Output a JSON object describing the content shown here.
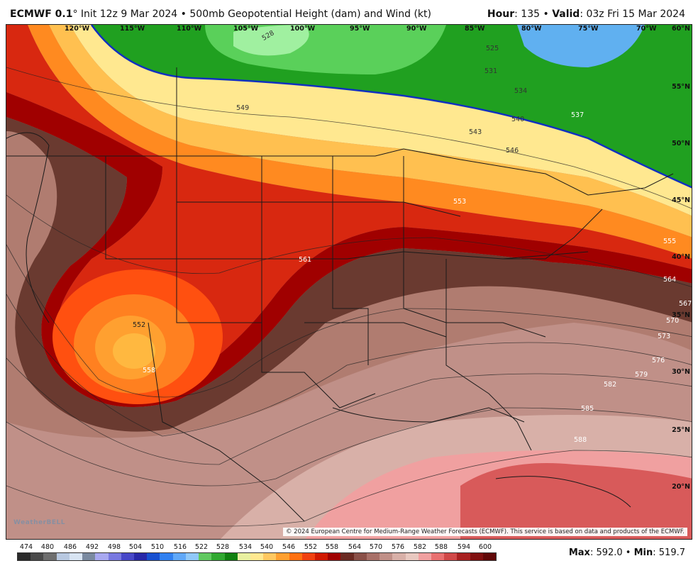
{
  "header": {
    "model": "ECMWF 0.1",
    "degree": "°",
    "init": " Init 12z 9 Mar 2024",
    "separator": " • ",
    "product": "500mb Geopotential Height (dam) and Wind (kt)",
    "hour_label": "Hour",
    "hour_value": ": 135",
    "valid_label": "Valid",
    "valid_value": ": 03z Fri 15 Mar 2024"
  },
  "map": {
    "longitude_labels": [
      "120°W",
      "115°W",
      "110°W",
      "105°W",
      "100°W",
      "95°W",
      "90°W",
      "85°W",
      "80°W",
      "75°W",
      "70°W",
      "60°N"
    ],
    "latitude_labels": [
      "55°N",
      "50°N",
      "45°N",
      "40°N",
      "35°N",
      "30°N",
      "25°N",
      "20°N"
    ],
    "contour_labels": [
      "528",
      "525",
      "531",
      "534",
      "537",
      "540",
      "543",
      "546",
      "549",
      "552",
      "553",
      "555",
      "558",
      "561",
      "564",
      "567",
      "570",
      "573",
      "576",
      "579",
      "582",
      "585",
      "588"
    ],
    "watermark": "WeatherBELL",
    "credit": "© 2024 European Centre for Medium-Range Weather Forecasts (ECMWF). This service is based on data and products of the ECMWF."
  },
  "legend": {
    "values": [
      "474",
      "480",
      "486",
      "492",
      "498",
      "504",
      "510",
      "516",
      "522",
      "528",
      "534",
      "540",
      "546",
      "552",
      "558",
      "564",
      "570",
      "576",
      "582",
      "588",
      "594",
      "600"
    ],
    "colors": [
      "#2b2b2b",
      "#4a4a4a",
      "#6e6e6e",
      "#b8c8e0",
      "#d8e4f2",
      "#7a8aa0",
      "#a8a8f0",
      "#7878e0",
      "#4848c8",
      "#2828a8",
      "#1850d0",
      "#3080f0",
      "#60a8f8",
      "#90c8f8",
      "#60c860",
      "#30a830",
      "#108010",
      "#e8f0a0",
      "#ffe890",
      "#ffc860",
      "#ffa030",
      "#ff7010",
      "#f04010",
      "#d01800",
      "#a00000",
      "#6a2a22",
      "#8a5048",
      "#a87068",
      "#c09088",
      "#d8b0a8",
      "#e8c8c0",
      "#f0a0a0",
      "#e87070",
      "#d04848",
      "#a82020",
      "#801010",
      "#600808"
    ]
  },
  "stats": {
    "max_label": "Max",
    "max_value": ": 592.0",
    "separator": " • ",
    "min_label": "Min",
    "min_value": ": 519.7"
  }
}
